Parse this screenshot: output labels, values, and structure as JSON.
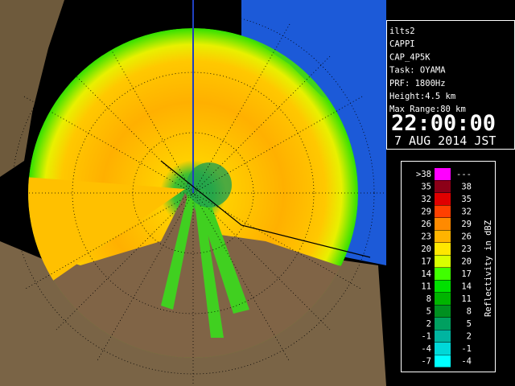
{
  "info": {
    "lines": [
      "ilts2",
      "CAPPI",
      "CAP_4P5K",
      "Task: OYAMA",
      "PRF: 1800Hz",
      "Height:4.5 km",
      "Max Range:80 km"
    ],
    "time": "22:00:00",
    "date": "7 AUG 2014 JST"
  },
  "legend": {
    "title": "Reflectivity in dBZ",
    "rows": [
      {
        "low": ">38",
        "high": "---",
        "color": "#ff00ff"
      },
      {
        "low": "35",
        "high": "38",
        "color": "#8c0018"
      },
      {
        "low": "32",
        "high": "35",
        "color": "#e00000"
      },
      {
        "low": "29",
        "high": "32",
        "color": "#ff4000"
      },
      {
        "low": "26",
        "high": "29",
        "color": "#ff8a00"
      },
      {
        "low": "23",
        "high": "26",
        "color": "#ffb400"
      },
      {
        "low": "20",
        "high": "23",
        "color": "#ffe600"
      },
      {
        "low": "17",
        "high": "20",
        "color": "#d8ff00"
      },
      {
        "low": "14",
        "high": "17",
        "color": "#40ff00"
      },
      {
        "low": "11",
        "high": "14",
        "color": "#00e000"
      },
      {
        "low": "8",
        "high": "11",
        "color": "#00b400"
      },
      {
        "low": "5",
        "high": "8",
        "color": "#009020"
      },
      {
        "low": "2",
        "high": "5",
        "color": "#00a060"
      },
      {
        "low": "-1",
        "high": "2",
        "color": "#00b4a0"
      },
      {
        "low": "-4",
        "high": "-1",
        "color": "#00d8d8"
      },
      {
        "low": "-7",
        "high": "-4",
        "color": "#00ffff"
      }
    ]
  }
}
